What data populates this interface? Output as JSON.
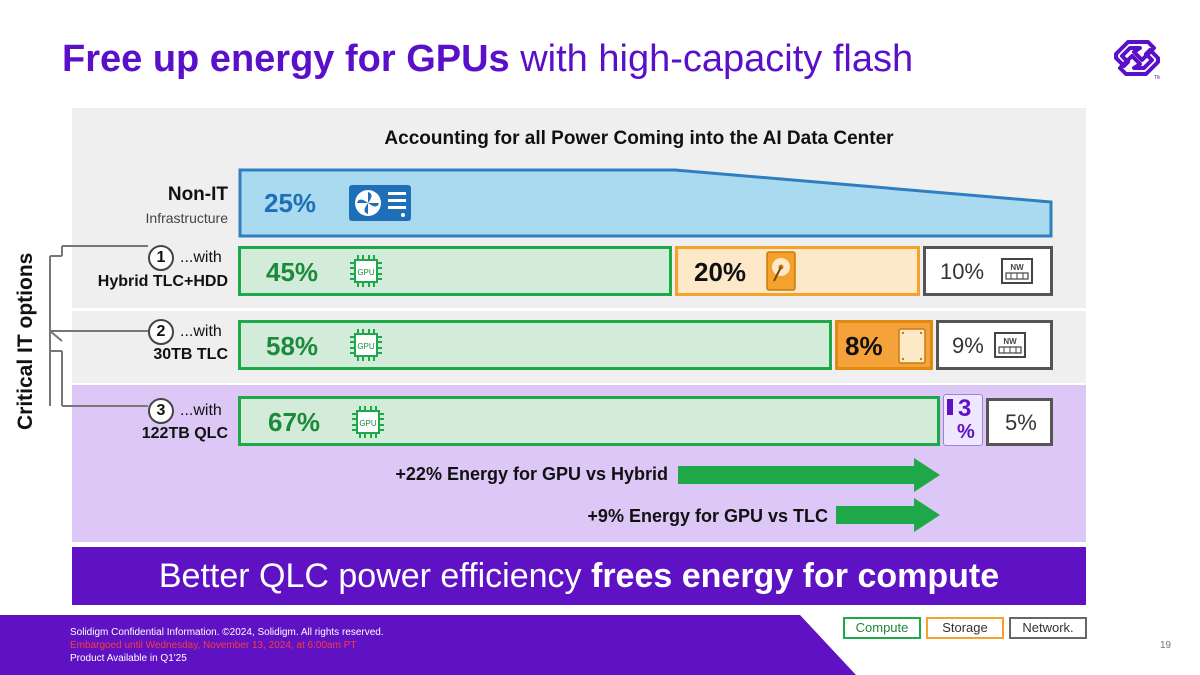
{
  "title": {
    "bold_part": "Free up energy for GPUs",
    "regular_part": "with high-capacity flash"
  },
  "chart_heading": "Accounting for all Power Coming into the AI Data Center",
  "side_label": "Critical IT options",
  "rows": {
    "non_it": {
      "label": "Non-IT",
      "sublabel": "Infrastructure",
      "value": "25%"
    },
    "hybrid": {
      "number": "1",
      "with": "...with",
      "label": "Hybrid TLC+HDD",
      "compute": "45%",
      "storage": "20%",
      "network": "10%"
    },
    "tlc": {
      "number": "2",
      "with": "...with",
      "label": "30TB TLC",
      "compute": "58%",
      "storage": "8%",
      "network": "9%"
    },
    "qlc": {
      "number": "3",
      "with": "...with",
      "label": "122TB QLC",
      "compute": "67%",
      "storage_digit": "3",
      "storage_pct": "%",
      "network": "5%"
    }
  },
  "icons": {
    "gpu_text": "GPU",
    "nw_text": "NW"
  },
  "arrows": {
    "vs_hybrid": "+22% Energy for GPU vs Hybrid",
    "vs_tlc": "+9% Energy for GPU vs TLC"
  },
  "banner": {
    "regular_part": "Better QLC power efficiency",
    "bold_part": "frees energy for compute"
  },
  "footer": {
    "line1": "Solidigm Confidential Information.  ©2024, Solidigm. All rights reserved.",
    "line2": "Embargoed until Wednesday, November 13, 2024, at 6:00am PT",
    "line3": "Product Available in Q1'25",
    "page_number": "19"
  },
  "legend": {
    "compute": "Compute",
    "storage": "Storage",
    "network": "Network."
  },
  "colors": {
    "brand_purple": "#5a0fc8",
    "compute_green": "#1fa84a",
    "storage_orange": "#f4a22b",
    "network_gray": "#555555",
    "nonit_blue": "#a9daf0",
    "embargo_red": "#ff3b3b"
  }
}
